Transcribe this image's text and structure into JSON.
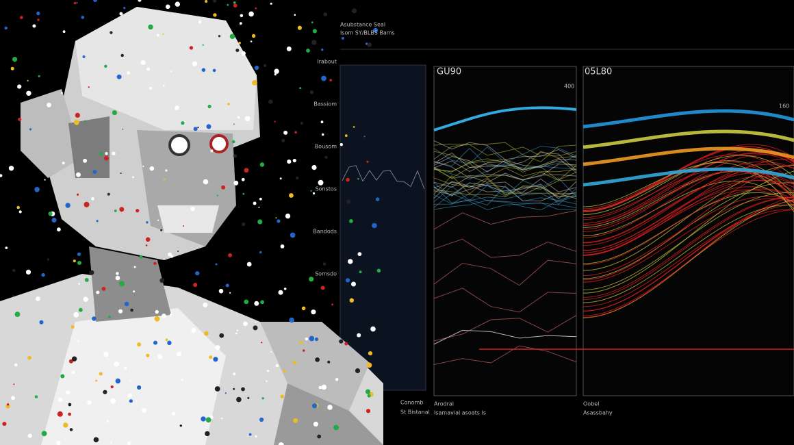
{
  "header": {
    "title": "Asubstance Seal",
    "subtitle": "Isom SY/BLBS Bams"
  },
  "left_panel": {
    "labels": [
      "Irabout",
      "Bassiom",
      "Bousom",
      "Sonstos",
      "Bandods",
      "Somsdo"
    ],
    "footer": "Conomb",
    "subfooter": "St Bistanal"
  },
  "panels": [
    {
      "title": "GU90",
      "right_label": "400",
      "footer": "Arodral",
      "subfooter": "Isamavial asoats Is"
    },
    {
      "title": "05L80",
      "right_label": "160",
      "footer": "Oobel",
      "subfooter": "Asassbahy"
    }
  ]
}
